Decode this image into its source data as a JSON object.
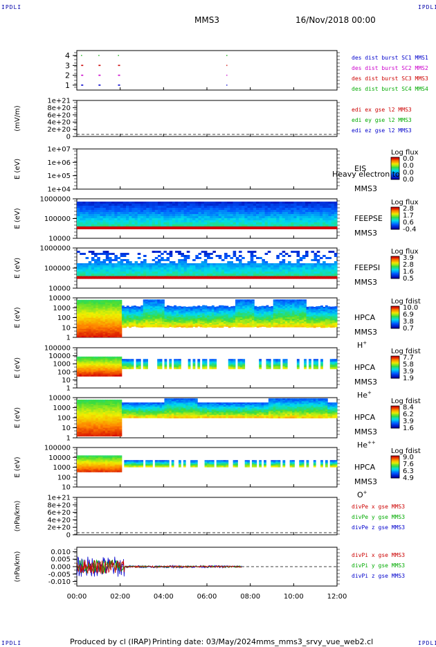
{
  "corner_label": "IPDLI",
  "header": {
    "spacecraft": "MMS3",
    "date": "16/Nov/2018 00:00"
  },
  "footer": {
    "produced": "Produced by cl (IRAP)",
    "printing": "Printing date: 03/May/2024",
    "script": "mms_mms3_srvy_vue_web2.cl"
  },
  "time_axis": [
    "00:00",
    "02:00",
    "04:00",
    "06:00",
    "08:00",
    "10:00",
    "12:00"
  ],
  "colors": {
    "mms1": "#0000cc",
    "mms2": "#cc00cc",
    "mms3": "#cc0000",
    "mms4": "#00aa00",
    "x": "#cc0000",
    "y": "#00aa00",
    "z": "#0000cc"
  },
  "chart_data": [
    {
      "type": "scatter",
      "title": "",
      "yticks": [
        "1",
        "2",
        "3",
        "4"
      ],
      "ylim": [
        0.5,
        4.5
      ],
      "series": [
        {
          "name": "des dist burst SC1 MMS1",
          "y": 1,
          "x_hours": [
            0.2,
            1.0,
            1.9,
            6.9
          ]
        },
        {
          "name": "des dist burst SC2 MMS2",
          "y": 2,
          "x_hours": [
            0.2,
            1.0,
            1.9,
            6.9
          ]
        },
        {
          "name": "des dist burst SC3 MMS3",
          "y": 3,
          "x_hours": [
            0.2,
            1.0,
            1.9,
            6.9
          ]
        },
        {
          "name": "des dist burst SC4 MMS4",
          "y": 4,
          "x_hours": [
            0.2,
            1.0,
            1.9,
            6.9
          ]
        }
      ]
    },
    {
      "type": "line",
      "ylabel": "(mV/m)",
      "yticks": [
        "1e+21",
        "8e+20",
        "6e+20",
        "4e+20",
        "2e+20",
        "0"
      ],
      "series": [
        {
          "name": "edi ex gse l2 MMS3"
        },
        {
          "name": "edi ey gse l2 MMS3"
        },
        {
          "name": "edi ez gse l2 MMS3"
        }
      ]
    },
    {
      "type": "heatmap",
      "ylabel": "E (eV)",
      "yticks": [
        "1e+07",
        "1e+06",
        "1e+05",
        "1e+04"
      ],
      "instrument": "EIS",
      "spacecraft": "MMS3",
      "overlay_text": "Heavy electron to",
      "colorbar": {
        "label": "Log flux",
        "ticks": [
          "0.0",
          "0.0",
          "0.0",
          "0.0"
        ]
      }
    },
    {
      "type": "heatmap",
      "ylabel": "E (eV)",
      "yticks": [
        "1000000",
        "100000",
        "10000"
      ],
      "instrument": "FEEPSE",
      "spacecraft": "MMS3",
      "colorbar": {
        "label": "Log flux",
        "ticks": [
          "2.8",
          "1.7",
          "0.6",
          "-0.4"
        ]
      }
    },
    {
      "type": "heatmap",
      "ylabel": "E (eV)",
      "yticks": [
        "1000000",
        "100000",
        "10000"
      ],
      "instrument": "FEEPSI",
      "spacecraft": "MMS3",
      "colorbar": {
        "label": "Log flux",
        "ticks": [
          "3.9",
          "2.8",
          "1.6",
          "0.5"
        ]
      }
    },
    {
      "type": "heatmap",
      "ylabel": "E (eV)",
      "yticks": [
        "10000",
        "1000",
        "100",
        "10",
        "1"
      ],
      "instrument": "HPCA",
      "spacecraft": "MMS3",
      "species": "H",
      "charge": "+",
      "colorbar": {
        "label": "Log fdist",
        "ticks": [
          "10.0",
          "6.9",
          "3.8",
          "0.7"
        ]
      }
    },
    {
      "type": "heatmap",
      "ylabel": "E (eV)",
      "yticks": [
        "100000",
        "10000",
        "1000",
        "100",
        "10",
        "1"
      ],
      "instrument": "HPCA",
      "spacecraft": "MMS3",
      "species": "He",
      "charge": "+",
      "colorbar": {
        "label": "Log fdist",
        "ticks": [
          "7.7",
          "5.8",
          "3.9",
          "1.9"
        ]
      }
    },
    {
      "type": "heatmap",
      "ylabel": "E (eV)",
      "yticks": [
        "10000",
        "1000",
        "100",
        "10",
        "1"
      ],
      "instrument": "HPCA",
      "spacecraft": "MMS3",
      "species": "He",
      "charge": "++",
      "colorbar": {
        "label": "Log fdist",
        "ticks": [
          "8.4",
          "6.2",
          "3.9",
          "1.6"
        ]
      }
    },
    {
      "type": "heatmap",
      "ylabel": "E (eV)",
      "yticks": [
        "100000",
        "10000",
        "1000",
        "100",
        "10"
      ],
      "instrument": "HPCA",
      "spacecraft": "MMS3",
      "species": "O",
      "charge": "+",
      "colorbar": {
        "label": "Log fdist",
        "ticks": [
          "9.0",
          "7.6",
          "6.3",
          "4.9"
        ]
      }
    },
    {
      "type": "line",
      "ylabel": "(nPa/km)",
      "yticks": [
        "1e+21",
        "8e+20",
        "6e+20",
        "4e+20",
        "2e+20",
        "0"
      ],
      "series": [
        {
          "name": "divPe x gse MMS3"
        },
        {
          "name": "divPe y gse MMS3"
        },
        {
          "name": "divPe z gse MMS3"
        }
      ]
    },
    {
      "type": "line",
      "ylabel": "(nPa/km)",
      "yticks": [
        "0.010",
        "0.005",
        "0.000",
        "-0.005",
        "-0.010"
      ],
      "ylim": [
        -0.013,
        0.013
      ],
      "series": [
        {
          "name": "divPi x gse MMS3"
        },
        {
          "name": "divPi y gse MMS3"
        },
        {
          "name": "divPi z gse MMS3"
        }
      ]
    }
  ]
}
